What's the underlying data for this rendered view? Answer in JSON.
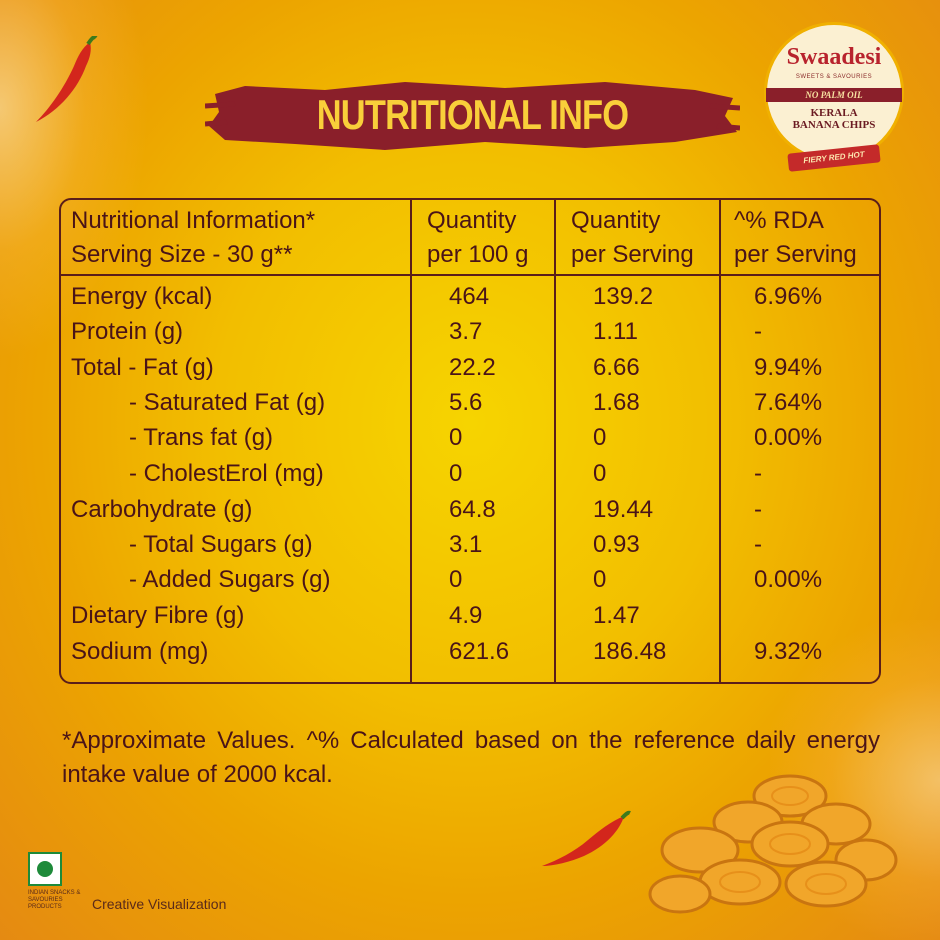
{
  "title": "NUTRITIONAL INFO",
  "badge": {
    "brand": "Swaadesi",
    "sub": "SWEETS & SAVOURIES",
    "tag": "NO PALM OIL",
    "product_line1": "KERALA",
    "product_line2": "BANANA CHIPS",
    "variant": "FIERY RED HOT"
  },
  "table": {
    "headers": {
      "col1_line1": "Nutritional Information*",
      "col1_line2": "Serving Size - 30 g**",
      "col2_line1": "Quantity",
      "col2_line2": "per 100 g",
      "col3_line1": "Quantity",
      "col3_line2": "per Serving",
      "col4_line1": "^% RDA",
      "col4_line2": "per Serving"
    },
    "rows": [
      {
        "name": "Energy (kcal)",
        "per100": "464",
        "perServing": "139.2",
        "rda": "6.96%"
      },
      {
        "name": "Protein (g)",
        "per100": "3.7",
        "perServing": "1.11",
        "rda": "-"
      },
      {
        "name": "Total - Fat  (g)",
        "per100": "22.2",
        "perServing": "6.66",
        "rda": "9.94%"
      },
      {
        "name": "- Saturated Fat (g)",
        "per100": "5.6",
        "perServing": "1.68",
        "rda": "7.64%"
      },
      {
        "name": "- Trans fat (g)",
        "per100": "0",
        "perServing": "0",
        "rda": "0.00%"
      },
      {
        "name": "- CholestErol (mg)",
        "per100": "0",
        "perServing": "0",
        "rda": "-"
      },
      {
        "name": "Carbohydrate (g)",
        "per100": "64.8",
        "perServing": "19.44",
        "rda": "-"
      },
      {
        "name": "- Total Sugars (g)",
        "per100": "3.1",
        "perServing": "0.93",
        "rda": "-"
      },
      {
        "name": "- Added Sugars (g)",
        "per100": "0",
        "perServing": "0",
        "rda": "0.00%"
      },
      {
        "name": "Dietary Fibre (g)",
        "per100": "4.9",
        "perServing": "1.47",
        "rda": ""
      },
      {
        "name": "Sodium (mg)",
        "per100": "621.6",
        "perServing": "186.48",
        "rda": "9.32%"
      }
    ]
  },
  "note": "*Approximate Values. ^% Calculated based on the reference daily energy intake value of 2000 kcal.",
  "footer": {
    "org": "INDIAN SNACKS & SAVOURIES PRODUCTS",
    "visualization": "Creative Visualization"
  },
  "colors": {
    "background": "#f2be00",
    "ink": "#4a1418",
    "title_brush": "#8a1f2a",
    "title_text": "#f9cf3a",
    "veg_mark": "#1e8a3a"
  }
}
